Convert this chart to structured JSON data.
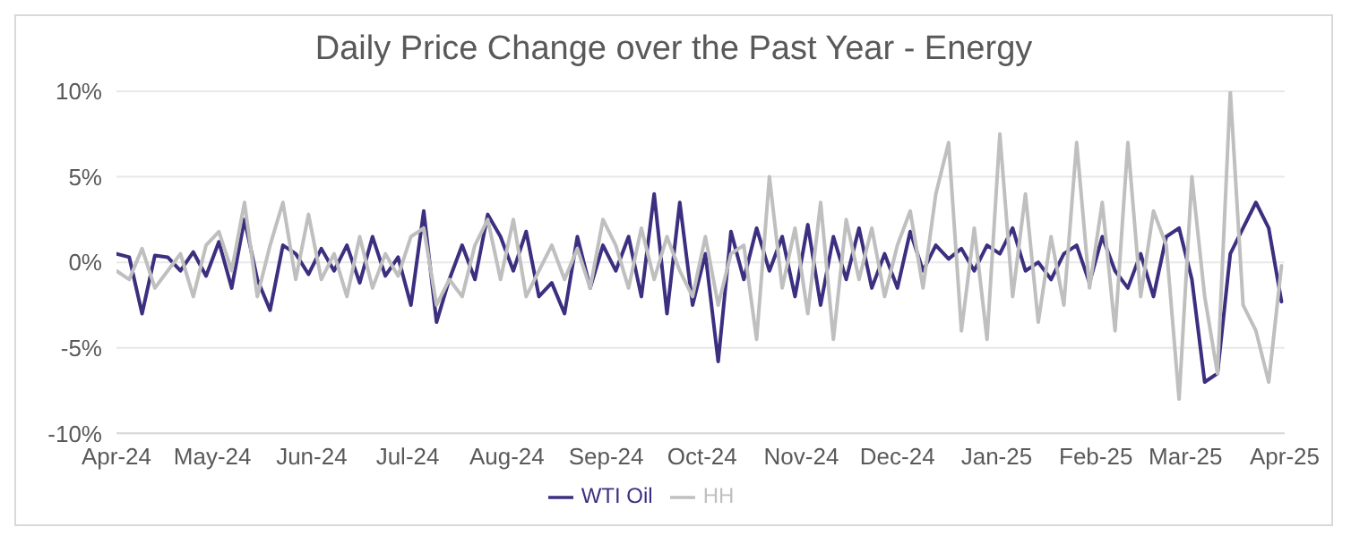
{
  "chart_data": {
    "type": "line",
    "title": "Daily Price Change over the Past Year - Energy",
    "x": [
      "2024-04-01",
      "2024-04-05",
      "2024-04-09",
      "2024-04-13",
      "2024-04-17",
      "2024-04-21",
      "2024-04-25",
      "2024-04-29",
      "2024-05-03",
      "2024-05-07",
      "2024-05-11",
      "2024-05-15",
      "2024-05-19",
      "2024-05-23",
      "2024-05-27",
      "2024-05-31",
      "2024-06-04",
      "2024-06-08",
      "2024-06-12",
      "2024-06-16",
      "2024-06-20",
      "2024-06-24",
      "2024-06-28",
      "2024-07-02",
      "2024-07-06",
      "2024-07-10",
      "2024-07-14",
      "2024-07-18",
      "2024-07-22",
      "2024-07-26",
      "2024-07-30",
      "2024-08-03",
      "2024-08-07",
      "2024-08-11",
      "2024-08-15",
      "2024-08-19",
      "2024-08-23",
      "2024-08-27",
      "2024-08-31",
      "2024-09-04",
      "2024-09-08",
      "2024-09-12",
      "2024-09-16",
      "2024-09-20",
      "2024-09-24",
      "2024-09-28",
      "2024-10-02",
      "2024-10-06",
      "2024-10-10",
      "2024-10-14",
      "2024-10-18",
      "2024-10-22",
      "2024-10-26",
      "2024-10-30",
      "2024-11-03",
      "2024-11-07",
      "2024-11-11",
      "2024-11-15",
      "2024-11-19",
      "2024-11-23",
      "2024-11-27",
      "2024-12-01",
      "2024-12-05",
      "2024-12-09",
      "2024-12-13",
      "2024-12-17",
      "2024-12-21",
      "2024-12-25",
      "2024-12-29",
      "2025-01-02",
      "2025-01-06",
      "2025-01-10",
      "2025-01-14",
      "2025-01-18",
      "2025-01-22",
      "2025-01-26",
      "2025-01-30",
      "2025-02-03",
      "2025-02-07",
      "2025-02-11",
      "2025-02-15",
      "2025-02-19",
      "2025-02-23",
      "2025-02-27",
      "2025-03-03",
      "2025-03-07",
      "2025-03-11",
      "2025-03-15",
      "2025-03-19",
      "2025-03-23",
      "2025-03-27",
      "2025-03-31"
    ],
    "series": [
      {
        "name": "WTI Oil",
        "color": "#3b2f80",
        "values": [
          0.5,
          0.3,
          -3,
          0.4,
          0.3,
          -0.5,
          0.6,
          -0.8,
          1.2,
          -1.5,
          2.5,
          -1,
          -2.8,
          1,
          0.5,
          -0.7,
          0.8,
          -0.5,
          1,
          -1.2,
          1.5,
          -0.8,
          0.3,
          -2.5,
          3,
          -3.5,
          -1,
          1,
          -1,
          2.8,
          1.5,
          -0.5,
          1.8,
          -2,
          -1.2,
          -3,
          1.5,
          -1.5,
          1,
          -0.5,
          1.5,
          -2,
          4,
          -3,
          3.5,
          -2.5,
          0.5,
          -5.8,
          1.8,
          -1,
          2,
          -0.5,
          1.5,
          -2,
          2.2,
          -2.5,
          1.5,
          -1,
          2,
          -1.5,
          0.5,
          -1.5,
          1.8,
          -0.5,
          1,
          0.2,
          0.8,
          -0.5,
          1,
          0.5,
          2,
          -0.5,
          0,
          -1,
          0.5,
          1,
          -1.2,
          1.5,
          -0.5,
          -1.5,
          0.5,
          -2,
          1.5,
          2,
          -1,
          -7,
          -6.5,
          0.5,
          2,
          3.5,
          2,
          -2.3
        ]
      },
      {
        "name": "HH",
        "color": "#bfbfbf",
        "values": [
          -0.5,
          -1,
          0.8,
          -1.5,
          -0.5,
          0.5,
          -2,
          1,
          1.8,
          -0.5,
          3.5,
          -2,
          1,
          3.5,
          -1,
          2.8,
          -1,
          0.5,
          -2,
          1.5,
          -1.5,
          0.5,
          -0.8,
          1.5,
          2,
          -2.5,
          -1,
          -2,
          1,
          2.5,
          -1,
          2.5,
          -2,
          -0.5,
          1,
          -1,
          0.8,
          -1.5,
          2.5,
          1,
          -1.5,
          2,
          -1,
          1.5,
          -0.5,
          -2,
          1.5,
          -2.5,
          0.5,
          1,
          -4.5,
          5,
          -1.5,
          2,
          -3,
          3.5,
          -4.5,
          2.5,
          -1,
          2,
          -2,
          1,
          3,
          -1.5,
          4,
          7,
          -4,
          2,
          -4.5,
          7.5,
          -2,
          4,
          -3.5,
          1.5,
          -2.5,
          7,
          -1.5,
          3.5,
          -4,
          7,
          -2,
          3,
          1,
          -8,
          5,
          -2,
          -6.5,
          10,
          -2.5,
          -4,
          -7,
          -0.2
        ]
      }
    ],
    "xlim": [
      "2024-04-01",
      "2025-04-01"
    ],
    "xticks": [
      {
        "value": "2024-04-01",
        "label": "Apr-24"
      },
      {
        "value": "2024-05-01",
        "label": "May-24"
      },
      {
        "value": "2024-06-01",
        "label": "Jun-24"
      },
      {
        "value": "2024-07-01",
        "label": "Jul-24"
      },
      {
        "value": "2024-08-01",
        "label": "Aug-24"
      },
      {
        "value": "2024-09-01",
        "label": "Sep-24"
      },
      {
        "value": "2024-10-01",
        "label": "Oct-24"
      },
      {
        "value": "2024-11-01",
        "label": "Nov-24"
      },
      {
        "value": "2024-12-01",
        "label": "Dec-24"
      },
      {
        "value": "2025-01-01",
        "label": "Jan-25"
      },
      {
        "value": "2025-02-01",
        "label": "Feb-25"
      },
      {
        "value": "2025-03-01",
        "label": "Mar-25"
      },
      {
        "value": "2025-04-01",
        "label": "Apr-25"
      }
    ],
    "ylim": [
      -10,
      10
    ],
    "yticks": [
      {
        "value": -10,
        "label": "-10%"
      },
      {
        "value": -5,
        "label": "-5%"
      },
      {
        "value": 0,
        "label": "0%"
      },
      {
        "value": 5,
        "label": "5%"
      },
      {
        "value": 10,
        "label": "10%"
      }
    ],
    "grid": "y",
    "legend": "bottom",
    "marker": "none",
    "line_style": "solid"
  }
}
